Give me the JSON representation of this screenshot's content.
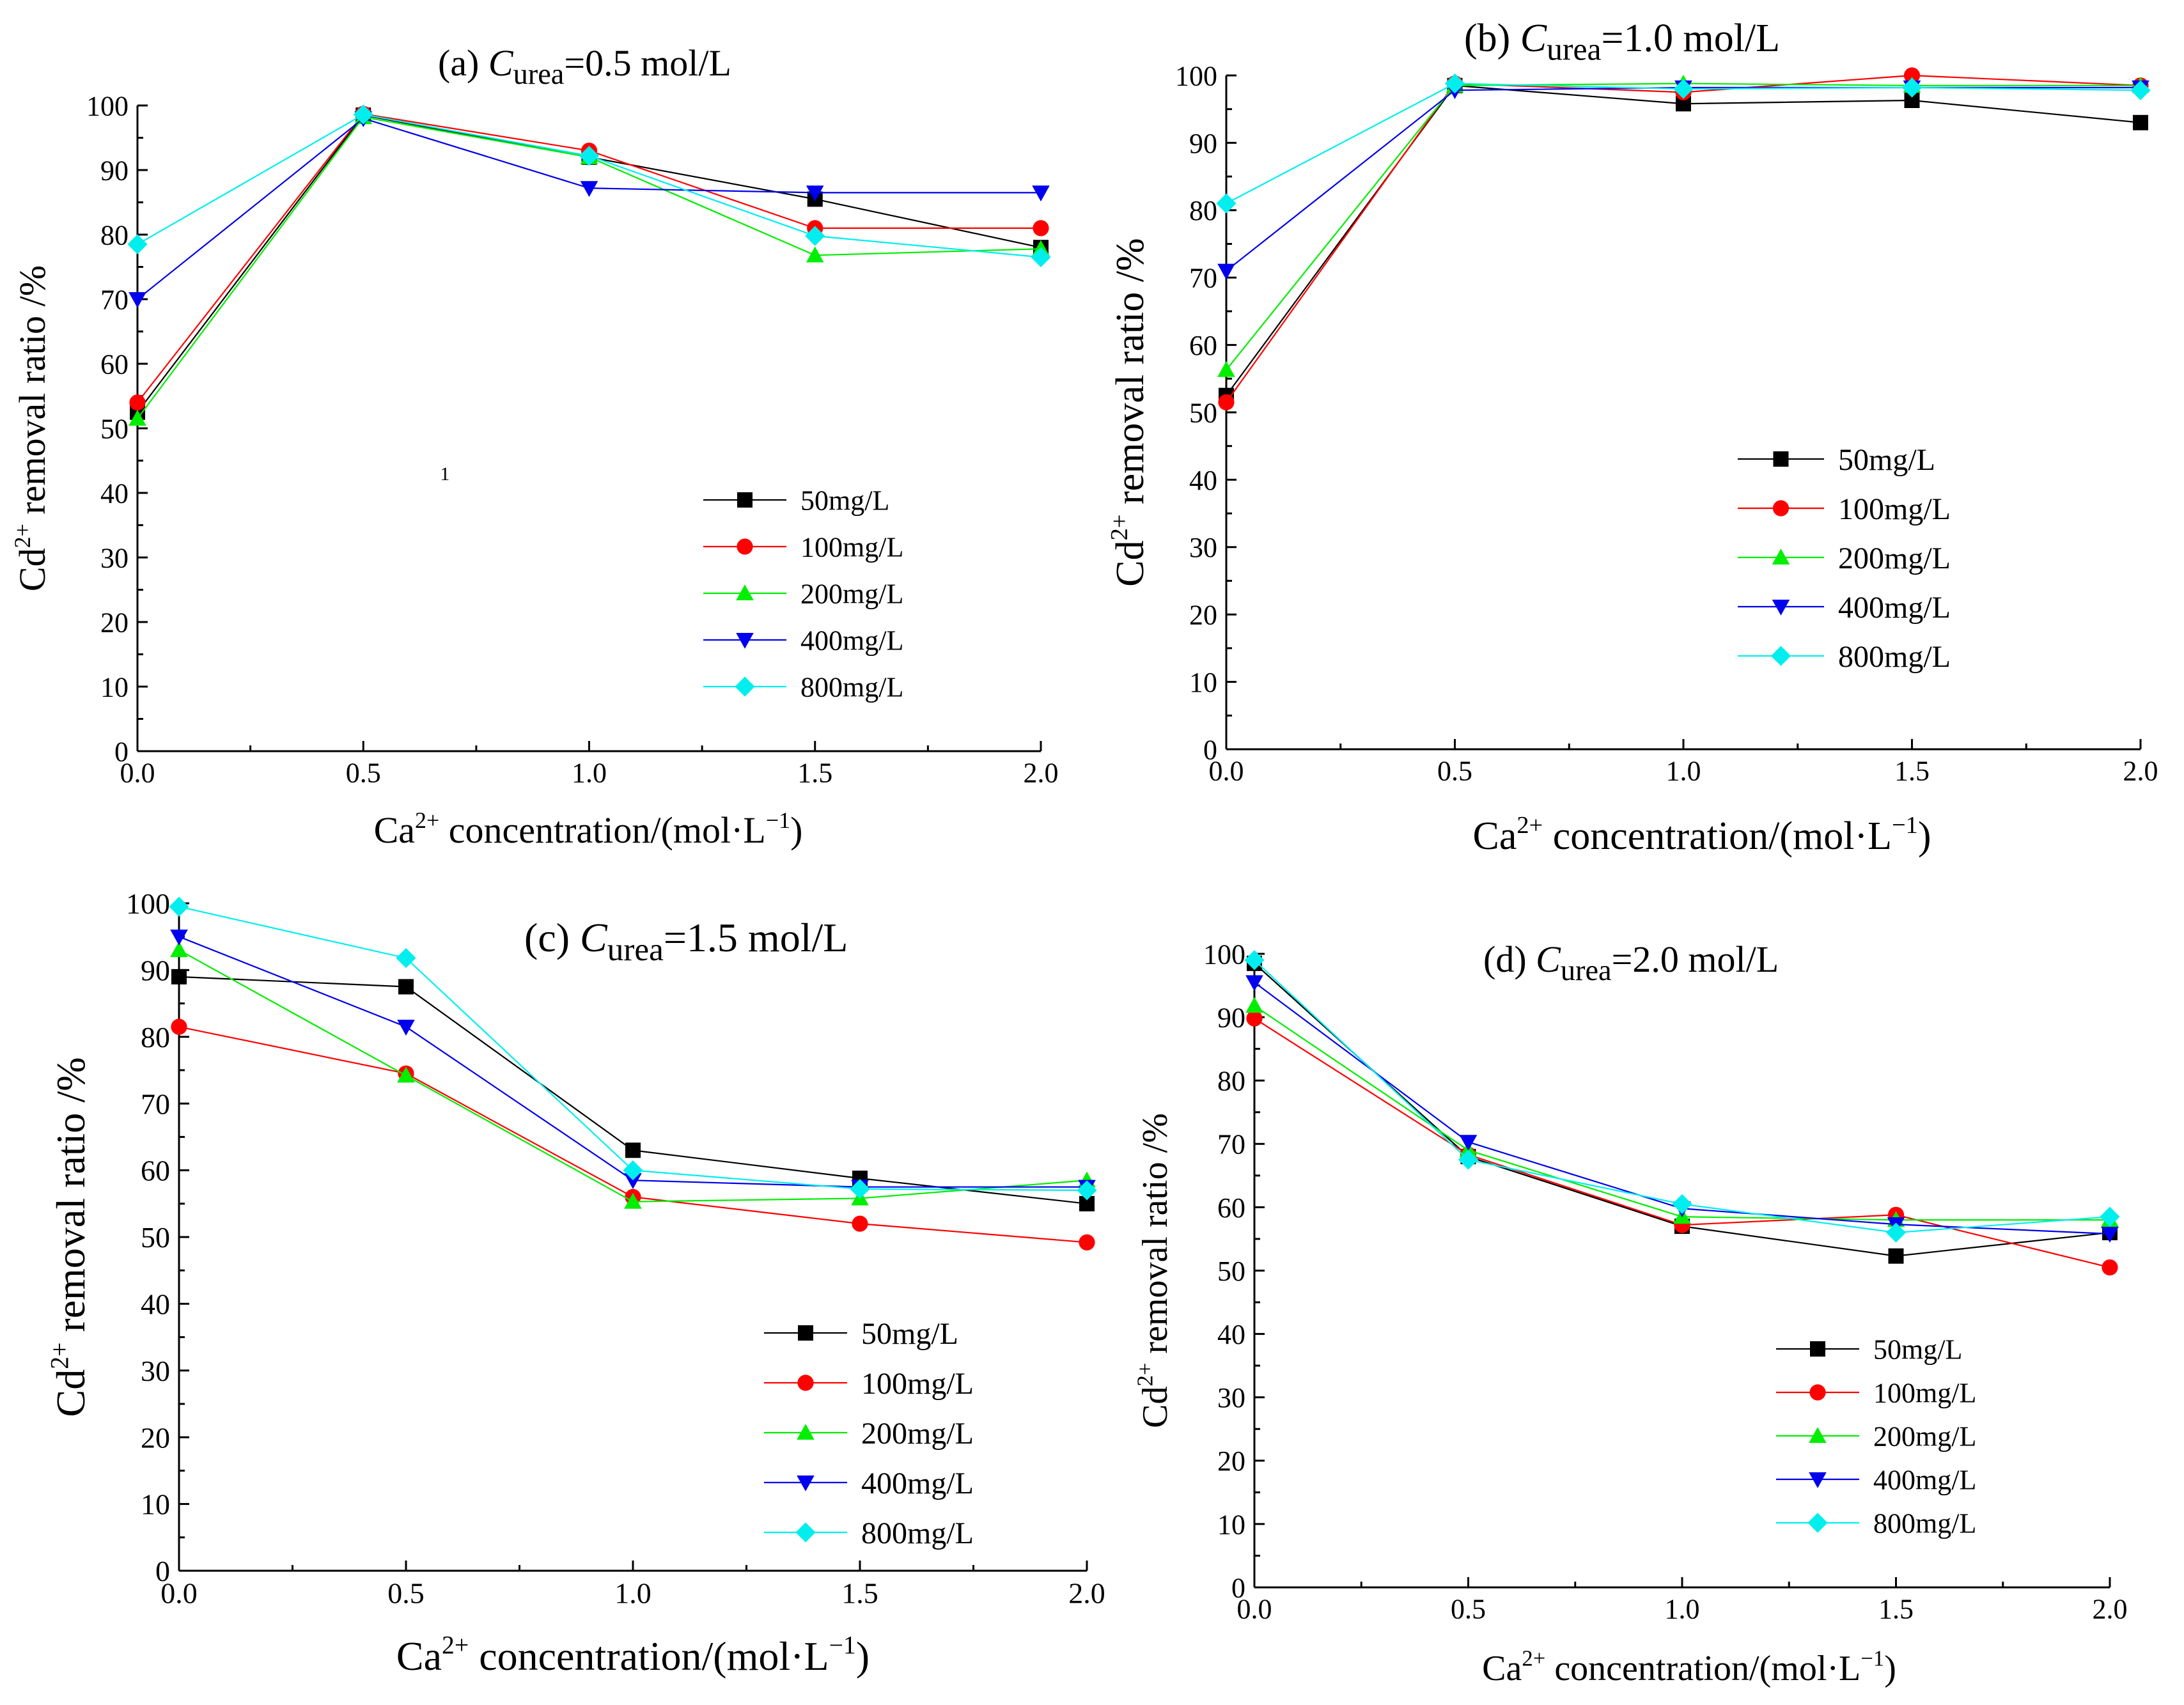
{
  "chart_data": [
    {
      "id": "a",
      "type": "line",
      "title_prefix": "(a) ",
      "title_var": "C",
      "title_sub": "urea",
      "title_suffix": "=0.5 mol/L",
      "xlabel_main": "Ca",
      "xlabel_sup": "2+",
      "xlabel_rest": "  concentration/(mol·L",
      "xlabel_sup2": "−1",
      "xlabel_end": ")",
      "ylabel_main": "Cd",
      "ylabel_sup": "2+",
      "ylabel_rest": " removal ratio /%",
      "x_ticks": [
        "0.0",
        "0.5",
        "1.0",
        "1.5",
        "2.0"
      ],
      "y_ticks": [
        "0",
        "10",
        "20",
        "30",
        "40",
        "50",
        "60",
        "70",
        "80",
        "90",
        "100"
      ],
      "xlim": [
        0,
        2.0
      ],
      "ylim": [
        0,
        100
      ],
      "legend_position": "bottom-right",
      "annotation": "1",
      "x": [
        0.0,
        0.5,
        1.0,
        1.5,
        2.0
      ],
      "series": [
        {
          "name": "50mg/L",
          "values": [
            52.5,
            98.5,
            92.0,
            85.5,
            78.0
          ]
        },
        {
          "name": "100mg/L",
          "values": [
            54.0,
            98.7,
            93.0,
            81.0,
            81.0
          ]
        },
        {
          "name": "200mg/L",
          "values": [
            51.5,
            98.2,
            92.0,
            76.8,
            77.8
          ]
        },
        {
          "name": "400mg/L",
          "values": [
            70.0,
            98.0,
            87.2,
            86.5,
            86.5
          ]
        },
        {
          "name": "800mg/L",
          "values": [
            78.5,
            98.6,
            92.2,
            79.8,
            76.5
          ]
        }
      ]
    },
    {
      "id": "b",
      "type": "line",
      "title_prefix": "(b) ",
      "title_var": "C",
      "title_sub": "urea",
      "title_suffix": "=1.0 mol/L",
      "xlabel_main": "Ca",
      "xlabel_sup": "2+",
      "xlabel_rest": " concentration/(mol·L",
      "xlabel_sup2": "−1",
      "xlabel_end": ")",
      "ylabel_main": "Cd",
      "ylabel_sup": "2+",
      "ylabel_rest": " removal ratio /%",
      "x_ticks": [
        "0.0",
        "0.5",
        "1.0",
        "1.5",
        "2.0"
      ],
      "y_ticks": [
        "0",
        "10",
        "20",
        "30",
        "40",
        "50",
        "60",
        "70",
        "80",
        "90",
        "100"
      ],
      "xlim": [
        0,
        2.0
      ],
      "ylim": [
        0,
        100
      ],
      "legend_position": "center-right",
      "x": [
        0.0,
        0.5,
        1.0,
        1.5,
        2.0
      ],
      "series": [
        {
          "name": "50mg/L",
          "values": [
            52.5,
            98.5,
            95.8,
            96.3,
            93.0
          ]
        },
        {
          "name": "100mg/L",
          "values": [
            51.5,
            98.8,
            97.5,
            100.0,
            98.5
          ]
        },
        {
          "name": "200mg/L",
          "values": [
            56.3,
            98.5,
            98.8,
            98.5,
            98.5
          ]
        },
        {
          "name": "400mg/L",
          "values": [
            71.0,
            97.8,
            98.2,
            98.2,
            98.2
          ]
        },
        {
          "name": "800mg/L",
          "values": [
            81.0,
            98.8,
            98.0,
            98.2,
            97.8
          ]
        }
      ]
    },
    {
      "id": "c",
      "type": "line",
      "title_prefix": "(c) ",
      "title_var": "C",
      "title_sub": "urea",
      "title_suffix": "=1.5 mol/L",
      "xlabel_main": "Ca",
      "xlabel_sup": "2+",
      "xlabel_rest": " concentration/(mol·L",
      "xlabel_sup2": "−1",
      "xlabel_end": ")",
      "ylabel_main": "Cd",
      "ylabel_sup": "2+",
      "ylabel_rest": " removal ratio /%",
      "x_ticks": [
        "0.0",
        "0.5",
        "1.0",
        "1.5",
        "2.0"
      ],
      "y_ticks": [
        "0",
        "10",
        "20",
        "30",
        "40",
        "50",
        "60",
        "70",
        "80",
        "90",
        "100"
      ],
      "xlim": [
        0,
        2.0
      ],
      "ylim": [
        0,
        100
      ],
      "legend_position": "bottom-right",
      "x": [
        0.0,
        0.5,
        1.0,
        1.5,
        2.0
      ],
      "series": [
        {
          "name": "50mg/L",
          "values": [
            89.0,
            87.5,
            63.0,
            58.8,
            55.0
          ]
        },
        {
          "name": "100mg/L",
          "values": [
            81.5,
            74.5,
            56.0,
            52.0,
            49.2
          ]
        },
        {
          "name": "200mg/L",
          "values": [
            93.0,
            74.2,
            55.3,
            55.8,
            58.5
          ]
        },
        {
          "name": "400mg/L",
          "values": [
            95.0,
            81.5,
            58.5,
            57.5,
            57.5
          ]
        },
        {
          "name": "800mg/L",
          "values": [
            99.5,
            91.8,
            60.0,
            57.2,
            57.0
          ]
        }
      ]
    },
    {
      "id": "d",
      "type": "line",
      "title_prefix": "(d) ",
      "title_var": "C",
      "title_sub": "urea",
      "title_suffix": "=2.0 mol/L",
      "xlabel_main": "Ca",
      "xlabel_sup": "2+",
      "xlabel_rest": "  concentration/(mol·L",
      "xlabel_sup2": "−1",
      "xlabel_end": ")",
      "ylabel_main": "Cd",
      "ylabel_sup": "2+",
      "ylabel_rest": " removal ratio /%",
      "x_ticks": [
        "0.0",
        "0.5",
        "1.0",
        "1.5",
        "2.0"
      ],
      "y_ticks": [
        "0",
        "10",
        "20",
        "30",
        "40",
        "50",
        "60",
        "70",
        "80",
        "90",
        "100"
      ],
      "xlim": [
        0,
        2.0
      ],
      "ylim": [
        0,
        100
      ],
      "legend_position": "bottom-right",
      "x": [
        0.0,
        0.5,
        1.0,
        1.5,
        2.0
      ],
      "series": [
        {
          "name": "50mg/L",
          "values": [
            98.5,
            68.0,
            57.0,
            52.3,
            56.0
          ]
        },
        {
          "name": "100mg/L",
          "values": [
            89.8,
            68.3,
            57.2,
            58.8,
            50.5
          ]
        },
        {
          "name": "200mg/L",
          "values": [
            91.8,
            69.0,
            58.5,
            58.0,
            58.0
          ]
        },
        {
          "name": "400mg/L",
          "values": [
            95.5,
            70.3,
            59.8,
            57.3,
            55.8
          ]
        },
        {
          "name": "800mg/L",
          "values": [
            99.0,
            67.5,
            60.5,
            56.0,
            58.5
          ]
        }
      ]
    }
  ],
  "style": {
    "series_colors": [
      "#000000",
      "#ff0000",
      "#00ee00",
      "#0000ee",
      "#00eeee"
    ],
    "series_markers": [
      "square",
      "circle",
      "triangle-up",
      "triangle-down",
      "diamond"
    ]
  }
}
